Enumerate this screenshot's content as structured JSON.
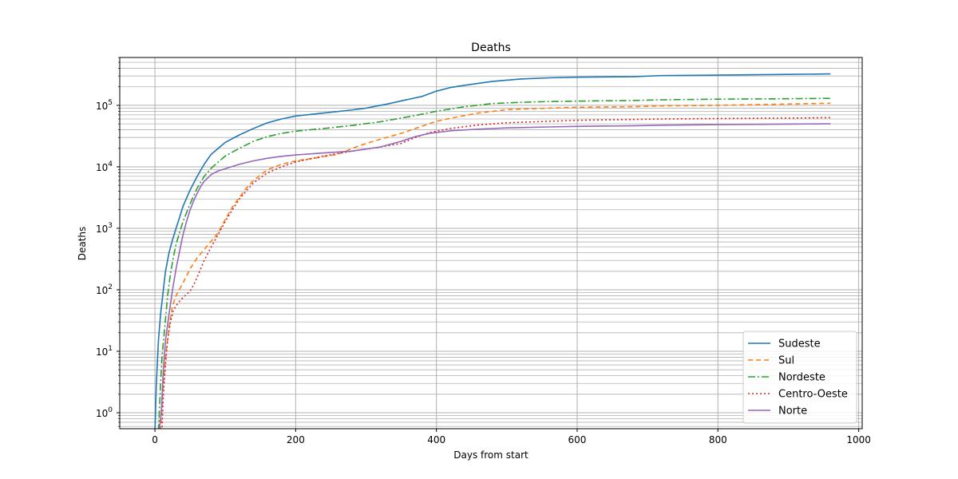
{
  "chart_data": {
    "type": "line",
    "title": "Deaths",
    "xlabel": "Days from start",
    "ylabel": "Deaths",
    "xlim": [
      -50,
      1005
    ],
    "ylim": [
      0.55,
      600000
    ],
    "yscale": "log",
    "grid": "both (major and minor on y)",
    "legend": "lower right",
    "x_ticks": [
      0,
      200,
      400,
      600,
      800,
      1000
    ],
    "x_tick_labels": [
      "0",
      "200",
      "400",
      "600",
      "800",
      "1000"
    ],
    "y_ticks": [
      1,
      10,
      100,
      1000,
      10000,
      100000
    ],
    "y_tick_labels": [
      {
        "base": "10",
        "exp": "0"
      },
      {
        "base": "10",
        "exp": "1"
      },
      {
        "base": "10",
        "exp": "2"
      },
      {
        "base": "10",
        "exp": "3"
      },
      {
        "base": "10",
        "exp": "4"
      },
      {
        "base": "10",
        "exp": "5"
      }
    ],
    "series": [
      {
        "name": "Sudeste",
        "color": "#1f77b4",
        "dash": "none",
        "x": [
          0,
          2,
          5,
          8,
          12,
          15,
          20,
          25,
          30,
          35,
          40,
          50,
          60,
          70,
          80,
          90,
          100,
          120,
          140,
          160,
          180,
          200,
          240,
          280,
          300,
          330,
          360,
          380,
          400,
          420,
          450,
          480,
          520,
          560,
          600,
          680,
          720,
          800,
          900,
          960
        ],
        "y": [
          0.5,
          3,
          15,
          40,
          100,
          200,
          400,
          650,
          1000,
          1500,
          2300,
          4200,
          7000,
          11000,
          16000,
          20000,
          25000,
          33000,
          42000,
          52000,
          60000,
          67000,
          75000,
          84000,
          90000,
          105000,
          125000,
          140000,
          170000,
          195000,
          220000,
          245000,
          268000,
          280000,
          287000,
          292000,
          305000,
          310000,
          318000,
          324000
        ]
      },
      {
        "name": "Sul",
        "color": "#ff7f0e",
        "dash": "6,4",
        "x": [
          8,
          12,
          16,
          20,
          25,
          30,
          40,
          50,
          60,
          70,
          80,
          90,
          100,
          110,
          120,
          130,
          140,
          160,
          180,
          200,
          230,
          260,
          290,
          320,
          350,
          370,
          400,
          430,
          460,
          500,
          560,
          600,
          680,
          720,
          800,
          900,
          960
        ],
        "y": [
          0.5,
          3,
          10,
          25,
          55,
          80,
          130,
          220,
          330,
          450,
          620,
          850,
          1400,
          2200,
          3200,
          4500,
          6000,
          9000,
          11000,
          12500,
          14000,
          16000,
          22000,
          28000,
          35000,
          42000,
          55000,
          65000,
          75000,
          85000,
          90000,
          93000,
          95000,
          98000,
          100000,
          105000,
          108000
        ]
      },
      {
        "name": "Nordeste",
        "color": "#2ca02c",
        "dash": "9,3,2,3",
        "x": [
          5,
          8,
          10,
          14,
          18,
          22,
          26,
          30,
          35,
          40,
          50,
          60,
          70,
          80,
          90,
          100,
          120,
          140,
          160,
          180,
          200,
          240,
          280,
          320,
          360,
          400,
          440,
          480,
          520,
          560,
          600,
          680,
          720,
          800,
          900,
          960
        ],
        "y": [
          0.5,
          3,
          8,
          25,
          80,
          180,
          330,
          550,
          850,
          1300,
          2500,
          4500,
          7000,
          9500,
          12000,
          15000,
          20000,
          26000,
          31000,
          35000,
          38000,
          42000,
          47000,
          54000,
          65000,
          80000,
          95000,
          107000,
          112000,
          115000,
          117000,
          120000,
          123000,
          126000,
          128000,
          130000
        ]
      },
      {
        "name": "Centro-Oeste",
        "color": "#d62728",
        "dash": "2,3",
        "x": [
          10,
          12,
          15,
          18,
          22,
          26,
          30,
          35,
          40,
          50,
          55,
          60,
          65,
          70,
          80,
          90,
          100,
          110,
          120,
          140,
          160,
          180,
          200,
          240,
          280,
          320,
          350,
          370,
          390,
          420,
          460,
          500,
          560,
          600,
          680,
          720,
          800,
          900,
          960
        ],
        "y": [
          0.5,
          2,
          6,
          15,
          30,
          45,
          55,
          65,
          75,
          95,
          120,
          160,
          220,
          300,
          500,
          800,
          1300,
          2000,
          3000,
          5500,
          8000,
          10000,
          12000,
          15000,
          18000,
          21000,
          24000,
          30000,
          36000,
          42000,
          48000,
          52000,
          55000,
          57000,
          59000,
          60000,
          61000,
          62000,
          63000
        ]
      },
      {
        "name": "Norte",
        "color": "#9467bd",
        "dash": "none",
        "x": [
          6,
          9,
          12,
          15,
          20,
          25,
          30,
          35,
          40,
          45,
          50,
          55,
          60,
          65,
          70,
          80,
          90,
          100,
          120,
          140,
          160,
          180,
          200,
          240,
          280,
          320,
          350,
          370,
          390,
          420,
          460,
          500,
          560,
          600,
          680,
          720,
          800,
          900,
          960
        ],
        "y": [
          0.5,
          1,
          5,
          15,
          40,
          100,
          220,
          420,
          800,
          1300,
          2000,
          2800,
          3700,
          4800,
          5800,
          7500,
          8600,
          9300,
          11000,
          12500,
          13800,
          14800,
          15600,
          16800,
          18000,
          21000,
          26000,
          31000,
          35000,
          38500,
          41000,
          43000,
          44500,
          45500,
          46500,
          47500,
          48500,
          49500,
          50000
        ]
      }
    ]
  }
}
